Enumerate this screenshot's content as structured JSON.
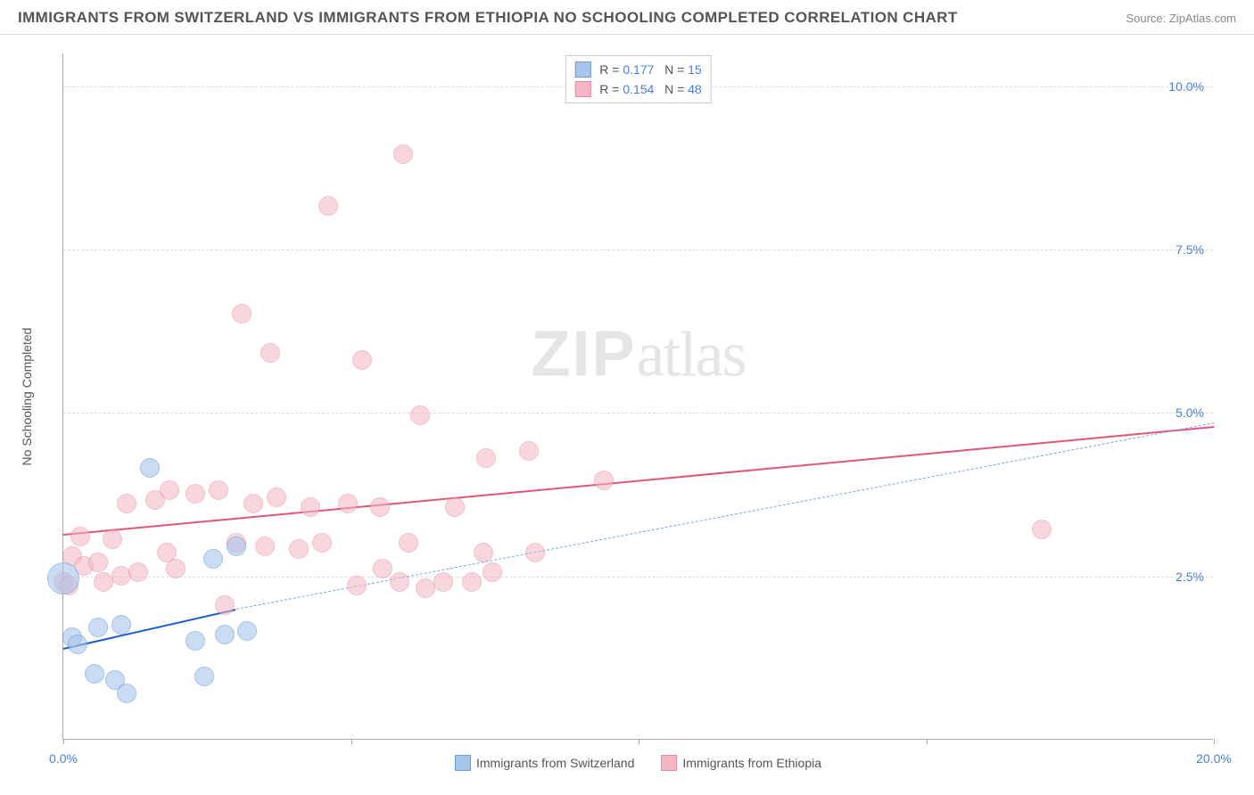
{
  "header": {
    "title": "IMMIGRANTS FROM SWITZERLAND VS IMMIGRANTS FROM ETHIOPIA NO SCHOOLING COMPLETED CORRELATION CHART",
    "source": "Source: ZipAtlas.com"
  },
  "watermark": {
    "zip": "ZIP",
    "atlas": "atlas"
  },
  "chart": {
    "type": "scatter",
    "y_axis_label": "No Schooling Completed",
    "xlim": [
      0,
      20
    ],
    "ylim": [
      0,
      10.5
    ],
    "x_ticks": [
      0,
      5,
      10,
      15,
      20
    ],
    "y_ticks": [
      2.5,
      5.0,
      7.5,
      10.0
    ],
    "x_tick_labels": [
      "0.0%",
      "",
      "",
      "",
      "20.0%"
    ],
    "y_tick_labels": [
      "2.5%",
      "5.0%",
      "7.5%",
      "10.0%"
    ],
    "grid_color": "#dddddd",
    "axis_color": "#aaaaaa",
    "background_color": "#ffffff",
    "tick_label_color": "#4a7fd8",
    "axis_label_color": "#555555",
    "axis_label_fontsize": 14,
    "tick_fontsize": 14
  },
  "series": {
    "switzerland": {
      "label": "Immigrants from Switzerland",
      "fill_color": "#a8c5ec",
      "fill_opacity": 0.6,
      "stroke_color": "#6b9bd8",
      "marker_radius": 11,
      "trend": {
        "solid_color": "#1a5fc9",
        "dash_color": "#7aa5dd",
        "x1": 0.0,
        "y1": 1.4,
        "x_solid_end": 3.0,
        "y_solid_end": 2.0,
        "x2": 20.0,
        "y2": 4.85
      },
      "points": [
        {
          "x": 0.0,
          "y": 2.45,
          "r": 18
        },
        {
          "x": 0.15,
          "y": 1.55
        },
        {
          "x": 0.25,
          "y": 1.45
        },
        {
          "x": 0.6,
          "y": 1.7
        },
        {
          "x": 0.55,
          "y": 1.0
        },
        {
          "x": 0.9,
          "y": 0.9
        },
        {
          "x": 1.0,
          "y": 1.75
        },
        {
          "x": 1.1,
          "y": 0.7
        },
        {
          "x": 1.5,
          "y": 4.15
        },
        {
          "x": 2.3,
          "y": 1.5
        },
        {
          "x": 2.45,
          "y": 0.95
        },
        {
          "x": 2.6,
          "y": 2.75
        },
        {
          "x": 2.8,
          "y": 1.6
        },
        {
          "x": 3.0,
          "y": 2.95
        },
        {
          "x": 3.2,
          "y": 1.65
        }
      ]
    },
    "ethiopia": {
      "label": "Immigrants from Ethiopia",
      "fill_color": "#f4b6c4",
      "fill_opacity": 0.55,
      "stroke_color": "#e88aa0",
      "marker_radius": 11,
      "trend": {
        "solid_color": "#e25577",
        "x1": 0.0,
        "y1": 3.15,
        "x2": 20.0,
        "y2": 4.8
      },
      "points": [
        {
          "x": 0.0,
          "y": 2.4
        },
        {
          "x": 0.1,
          "y": 2.35
        },
        {
          "x": 0.15,
          "y": 2.8
        },
        {
          "x": 0.3,
          "y": 3.1
        },
        {
          "x": 0.35,
          "y": 2.65
        },
        {
          "x": 0.6,
          "y": 2.7
        },
        {
          "x": 0.7,
          "y": 2.4
        },
        {
          "x": 0.85,
          "y": 3.05
        },
        {
          "x": 1.0,
          "y": 2.5
        },
        {
          "x": 1.1,
          "y": 3.6
        },
        {
          "x": 1.3,
          "y": 2.55
        },
        {
          "x": 1.6,
          "y": 3.65
        },
        {
          "x": 1.8,
          "y": 2.85
        },
        {
          "x": 1.85,
          "y": 3.8
        },
        {
          "x": 1.95,
          "y": 2.6
        },
        {
          "x": 2.3,
          "y": 3.75
        },
        {
          "x": 2.7,
          "y": 3.8
        },
        {
          "x": 2.8,
          "y": 2.05
        },
        {
          "x": 3.0,
          "y": 3.0
        },
        {
          "x": 3.1,
          "y": 6.5
        },
        {
          "x": 3.3,
          "y": 3.6
        },
        {
          "x": 3.5,
          "y": 2.95
        },
        {
          "x": 3.6,
          "y": 5.9
        },
        {
          "x": 3.7,
          "y": 3.7
        },
        {
          "x": 4.1,
          "y": 2.9
        },
        {
          "x": 4.3,
          "y": 3.55
        },
        {
          "x": 4.5,
          "y": 3.0
        },
        {
          "x": 4.6,
          "y": 8.15
        },
        {
          "x": 4.95,
          "y": 3.6
        },
        {
          "x": 5.1,
          "y": 2.35
        },
        {
          "x": 5.2,
          "y": 5.8
        },
        {
          "x": 5.5,
          "y": 3.55
        },
        {
          "x": 5.55,
          "y": 2.6
        },
        {
          "x": 5.85,
          "y": 2.4
        },
        {
          "x": 5.9,
          "y": 8.95
        },
        {
          "x": 6.0,
          "y": 3.0
        },
        {
          "x": 6.2,
          "y": 4.95
        },
        {
          "x": 6.3,
          "y": 2.3
        },
        {
          "x": 6.6,
          "y": 2.4
        },
        {
          "x": 6.8,
          "y": 3.55
        },
        {
          "x": 7.1,
          "y": 2.4
        },
        {
          "x": 7.3,
          "y": 2.85
        },
        {
          "x": 7.35,
          "y": 4.3
        },
        {
          "x": 7.45,
          "y": 2.55
        },
        {
          "x": 8.1,
          "y": 4.4
        },
        {
          "x": 8.2,
          "y": 2.85
        },
        {
          "x": 9.4,
          "y": 3.95
        },
        {
          "x": 17.0,
          "y": 3.2
        }
      ]
    }
  },
  "legend_top": {
    "rows": [
      {
        "swatch_fill": "#a8c5ec",
        "swatch_stroke": "#6b9bd8",
        "r_label": "R =",
        "r_value": "0.177",
        "n_label": "N =",
        "n_value": "15"
      },
      {
        "swatch_fill": "#f4b6c4",
        "swatch_stroke": "#e88aa0",
        "r_label": "R =",
        "r_value": "0.154",
        "n_label": "N =",
        "n_value": "48"
      }
    ]
  },
  "legend_bottom": {
    "items": [
      {
        "swatch_fill": "#a8c5ec",
        "swatch_stroke": "#6b9bd8",
        "label": "Immigrants from Switzerland"
      },
      {
        "swatch_fill": "#f4b6c4",
        "swatch_stroke": "#e88aa0",
        "label": "Immigrants from Ethiopia"
      }
    ]
  }
}
